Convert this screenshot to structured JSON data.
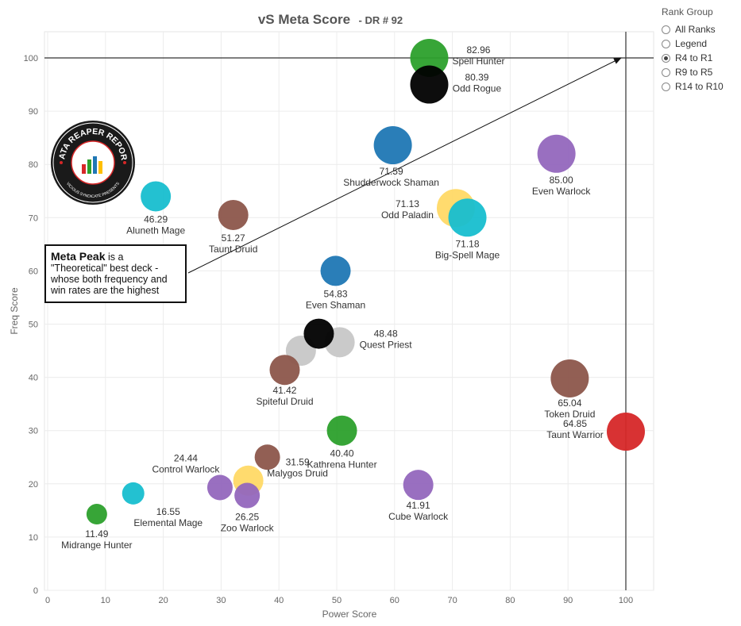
{
  "title": {
    "main": "vS Meta Score",
    "sub": "- DR # 92"
  },
  "legend": {
    "title": "Rank Group",
    "options": [
      {
        "label": "All Ranks",
        "selected": false
      },
      {
        "label": "Legend",
        "selected": false
      },
      {
        "label": "R4 to R1",
        "selected": true
      },
      {
        "label": "R9 to R5",
        "selected": false
      },
      {
        "label": "R14 to R10",
        "selected": false
      }
    ]
  },
  "annotation": {
    "bold": "Meta Peak",
    "rest": " is a \"Theoretical\" best deck - whose both frequency and win rates are the highest"
  },
  "logo": {
    "text_top": "DATA REAPER REPORT",
    "text_bottom": "VICIOUS SYNDICATE PRESENTS"
  },
  "chart_data": {
    "type": "scatter",
    "xlabel": "Power Score",
    "ylabel": "Freq Score",
    "xlim": [
      0,
      105
    ],
    "ylim": [
      0,
      105
    ],
    "xticks": [
      0,
      10,
      20,
      30,
      40,
      50,
      60,
      70,
      80,
      90,
      100
    ],
    "yticks": [
      0,
      10,
      20,
      30,
      40,
      50,
      60,
      70,
      80,
      90,
      100
    ],
    "grid": true,
    "reference_lines": {
      "x": 100,
      "y": 100
    },
    "points": [
      {
        "name": "Spell Hunter",
        "score": "82.96",
        "x": 66,
        "y": 100,
        "color": "#2ca02c"
      },
      {
        "name": "Odd Rogue",
        "score": "80.39",
        "x": 66,
        "y": 95,
        "color": "#000000"
      },
      {
        "name": "Shudderwock Shaman",
        "score": "71.59",
        "x": 59.7,
        "y": 83.6,
        "color": "#1f77b4"
      },
      {
        "name": "Even Warlock",
        "score": "85.00",
        "x": 88,
        "y": 82,
        "color": "#9467bd"
      },
      {
        "name": "Aluneth Mage",
        "score": "46.29",
        "x": 18.7,
        "y": 74,
        "color": "#17becf"
      },
      {
        "name": "Odd Paladin",
        "score": "71.13",
        "x": 70.6,
        "y": 71.8,
        "color": "#ffd966"
      },
      {
        "name": "Big-Spell Mage",
        "score": "71.18",
        "x": 72.6,
        "y": 70,
        "color": "#17becf"
      },
      {
        "name": "Taunt Druid",
        "score": "51.27",
        "x": 32.1,
        "y": 70.5,
        "color": "#8c564b"
      },
      {
        "name": "Even Shaman",
        "score": "54.83",
        "x": 49.8,
        "y": 60,
        "color": "#1f77b4"
      },
      {
        "name": "Quest Priest",
        "score": "48.48",
        "x": 50.5,
        "y": 46.6,
        "color": "#c7c7c7"
      },
      {
        "name": "",
        "score": "",
        "x": 43.8,
        "y": 45,
        "color": "#c7c7c7"
      },
      {
        "name": "",
        "score": "",
        "x": 46.9,
        "y": 48.2,
        "color": "#000000"
      },
      {
        "name": "Spiteful Druid",
        "score": "41.42",
        "x": 41,
        "y": 41.4,
        "color": "#8c564b"
      },
      {
        "name": "Token Druid",
        "score": "65.04",
        "x": 90.3,
        "y": 39.8,
        "color": "#8c564b"
      },
      {
        "name": "Taunt Warrior",
        "score": "64.85",
        "x": 100,
        "y": 29.8,
        "color": "#d62728"
      },
      {
        "name": "Kathrena Hunter",
        "score": "40.40",
        "x": 50.9,
        "y": 30,
        "color": "#2ca02c"
      },
      {
        "name": "Control Warlock",
        "score": "24.44",
        "x": 29.8,
        "y": 19.3,
        "color": "#9467bd"
      },
      {
        "name": "Malygos Druid",
        "score": "31.59",
        "x": 38,
        "y": 25,
        "color": "#8c564b"
      },
      {
        "name": "",
        "score": "",
        "x": 34.7,
        "y": 20.6,
        "color": "#ffd966"
      },
      {
        "name": "Zoo Warlock",
        "score": "26.25",
        "x": 34.5,
        "y": 17.8,
        "color": "#9467bd"
      },
      {
        "name": "Cube Warlock",
        "score": "41.91",
        "x": 64.1,
        "y": 19.8,
        "color": "#9467bd"
      },
      {
        "name": "Elemental Mage",
        "score": "16.55",
        "x": 14.8,
        "y": 18.2,
        "color": "#17becf"
      },
      {
        "name": "Midrange Hunter",
        "score": "11.49",
        "x": 8.5,
        "y": 14.3,
        "color": "#2ca02c"
      }
    ]
  }
}
